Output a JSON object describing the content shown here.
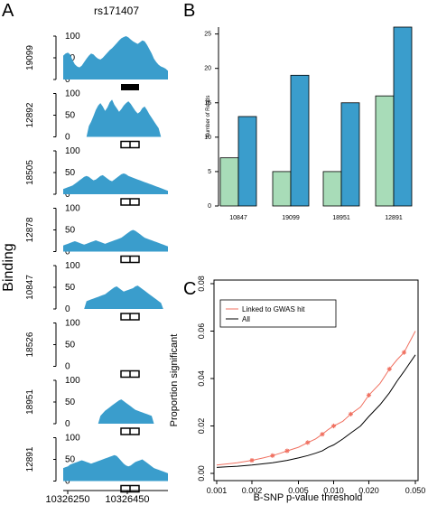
{
  "panel_letters": [
    "A",
    "B",
    "C"
  ],
  "chart_data": [
    {
      "panel": "A",
      "type": "area",
      "title": "rs171407",
      "ylabel": "Binding",
      "xticks": [
        "10326250",
        "10326450"
      ],
      "yticks": [
        "0",
        "50",
        "100"
      ],
      "ylim": [
        0,
        100
      ],
      "track_color": "#3a9dcc",
      "tracks": [
        {
          "id": "19099",
          "motif": "filled",
          "profile": [
            55,
            60,
            62,
            58,
            45,
            35,
            30,
            28,
            32,
            40,
            48,
            55,
            60,
            58,
            52,
            48,
            46,
            50,
            56,
            62,
            68,
            72,
            78,
            84,
            90,
            95,
            98,
            100,
            97,
            92,
            88,
            85,
            82,
            86,
            90,
            88,
            80,
            70,
            60,
            48,
            40,
            34,
            30,
            28,
            25,
            20
          ]
        },
        {
          "id": "12892",
          "motif": "split",
          "profile": [
            0,
            0,
            0,
            0,
            0,
            0,
            0,
            0,
            0,
            0,
            0,
            25,
            35,
            48,
            62,
            72,
            78,
            70,
            60,
            68,
            80,
            86,
            74,
            66,
            58,
            64,
            72,
            78,
            82,
            76,
            68,
            60,
            54,
            58,
            66,
            70,
            62,
            52,
            44,
            36,
            28,
            20,
            0,
            0,
            0,
            0
          ]
        },
        {
          "id": "18505",
          "motif": "split",
          "profile": [
            12,
            14,
            16,
            18,
            20,
            24,
            28,
            32,
            36,
            40,
            42,
            40,
            36,
            32,
            34,
            38,
            42,
            44,
            40,
            36,
            32,
            30,
            34,
            38,
            42,
            46,
            48,
            46,
            42,
            40,
            38,
            36,
            34,
            32,
            30,
            28,
            26,
            24,
            22,
            20,
            18,
            16,
            14,
            12,
            10,
            8
          ]
        },
        {
          "id": "12878",
          "motif": "split",
          "profile": [
            14,
            16,
            18,
            20,
            22,
            24,
            22,
            20,
            18,
            16,
            18,
            20,
            22,
            24,
            26,
            24,
            22,
            20,
            18,
            20,
            22,
            24,
            26,
            28,
            30,
            32,
            36,
            40,
            44,
            48,
            50,
            48,
            44,
            40,
            36,
            32,
            30,
            28,
            26,
            24,
            22,
            20,
            18,
            16,
            14,
            12
          ]
        },
        {
          "id": "10847",
          "motif": "split",
          "profile": [
            0,
            0,
            0,
            0,
            0,
            0,
            0,
            0,
            0,
            0,
            18,
            20,
            22,
            24,
            26,
            28,
            30,
            32,
            34,
            38,
            42,
            46,
            50,
            52,
            48,
            44,
            40,
            42,
            44,
            46,
            48,
            52,
            54,
            50,
            46,
            42,
            38,
            34,
            30,
            26,
            22,
            18,
            14,
            0,
            0,
            0
          ]
        },
        {
          "id": "18526",
          "motif": "split",
          "profile": []
        },
        {
          "id": "18951",
          "motif": "split",
          "profile": [
            0,
            0,
            0,
            0,
            0,
            0,
            0,
            0,
            0,
            0,
            0,
            0,
            0,
            0,
            0,
            0,
            18,
            24,
            30,
            34,
            38,
            42,
            46,
            50,
            54,
            56,
            52,
            48,
            44,
            40,
            36,
            32,
            30,
            28,
            26,
            24,
            22,
            20,
            18,
            0,
            0,
            0,
            0,
            0,
            0,
            0
          ]
        },
        {
          "id": "12891",
          "motif": "split",
          "profile": [
            30,
            32,
            34,
            38,
            40,
            42,
            44,
            46,
            48,
            46,
            44,
            42,
            40,
            42,
            44,
            46,
            48,
            50,
            52,
            54,
            56,
            58,
            60,
            58,
            52,
            46,
            40,
            36,
            34,
            36,
            40,
            44,
            46,
            48,
            50,
            46,
            42,
            38,
            34,
            30,
            28,
            26,
            24,
            22,
            20,
            18
          ]
        }
      ]
    },
    {
      "panel": "B",
      "type": "bar",
      "ylabel": "Number of Reads",
      "categories": [
        "10847",
        "19099",
        "18951",
        "12891"
      ],
      "series": [
        {
          "values": [
            7,
            5,
            5,
            16
          ],
          "color": "#a8dcb8"
        },
        {
          "values": [
            13,
            19,
            15,
            26
          ],
          "color": "#3a9dcc"
        }
      ],
      "ylim": [
        0,
        26
      ],
      "yticks": [
        "0",
        "5",
        "10",
        "15",
        "20",
        "25"
      ]
    },
    {
      "panel": "C",
      "type": "line",
      "xlabel": "B-SNP p-value threshold",
      "ylabel": "Proportion significant",
      "xscale": "log",
      "xticks": [
        "0.001",
        "0.002",
        "0.005",
        "0.010",
        "0.020",
        "0.050"
      ],
      "xtick_values": [
        0.001,
        0.002,
        0.005,
        0.01,
        0.02,
        0.05
      ],
      "yticks": [
        "0.00",
        "0.02",
        "0.04",
        "0.06",
        "0.08"
      ],
      "ytick_values": [
        0,
        0.02,
        0.04,
        0.06,
        0.08
      ],
      "ylim": [
        0,
        0.08
      ],
      "legend_position": "top-left",
      "series": [
        {
          "name": "Linked to GWAS hit",
          "color": "#f07060",
          "marker": "star",
          "x": [
            0.001,
            0.0015,
            0.002,
            0.0025,
            0.003,
            0.0035,
            0.004,
            0.005,
            0.006,
            0.007,
            0.008,
            0.009,
            0.01,
            0.012,
            0.014,
            0.017,
            0.02,
            0.025,
            0.03,
            0.035,
            0.04,
            0.05
          ],
          "y": [
            0.0035,
            0.0045,
            0.0055,
            0.0065,
            0.0075,
            0.0085,
            0.0095,
            0.011,
            0.013,
            0.0145,
            0.0165,
            0.0185,
            0.02,
            0.022,
            0.025,
            0.028,
            0.033,
            0.038,
            0.044,
            0.048,
            0.051,
            0.06
          ]
        },
        {
          "name": "All",
          "color": "#000000",
          "marker": "none",
          "x": [
            0.001,
            0.0015,
            0.002,
            0.003,
            0.004,
            0.005,
            0.006,
            0.007,
            0.008,
            0.009,
            0.01,
            0.012,
            0.014,
            0.017,
            0.02,
            0.025,
            0.03,
            0.035,
            0.04,
            0.05
          ],
          "y": [
            0.0025,
            0.003,
            0.0035,
            0.0045,
            0.0055,
            0.0065,
            0.0075,
            0.0085,
            0.0095,
            0.011,
            0.012,
            0.0145,
            0.017,
            0.02,
            0.024,
            0.029,
            0.034,
            0.039,
            0.043,
            0.05
          ]
        }
      ]
    }
  ]
}
